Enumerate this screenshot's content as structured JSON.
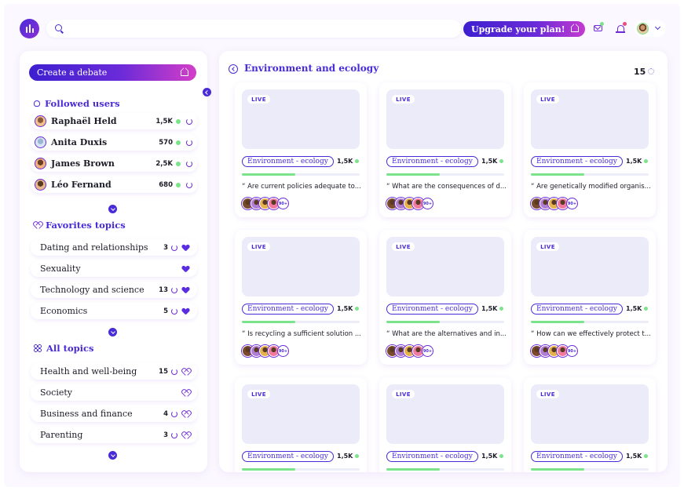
{
  "search": {
    "placeholder": ""
  },
  "header": {
    "upgrade_label": "Upgrade your plan!"
  },
  "sidebar": {
    "create_label": "Create a debate",
    "followed_title": "Followed users",
    "followed_users": [
      {
        "name": "Raphaël Held",
        "count": "1,5K"
      },
      {
        "name": "Anita Duxis",
        "count": "570"
      },
      {
        "name": "James Brown",
        "count": "2,5K"
      },
      {
        "name": "Léo Fernand",
        "count": "680"
      }
    ],
    "favorites_title": "Favorites topics",
    "favorite_topics": [
      {
        "name": "Dating and relationships",
        "count": "3"
      },
      {
        "name": "Sexuality",
        "count": ""
      },
      {
        "name": "Technology and science",
        "count": "13"
      },
      {
        "name": "Economics",
        "count": "5"
      }
    ],
    "all_title": "All topics",
    "all_topics": [
      {
        "name": "Health and well-being",
        "count": "15"
      },
      {
        "name": "Society",
        "count": ""
      },
      {
        "name": "Business and finance",
        "count": "4"
      },
      {
        "name": "Parenting",
        "count": "3"
      }
    ]
  },
  "main": {
    "title": "Environment and ecology",
    "count": "15",
    "cards": [
      {
        "live": "LIVE",
        "tag": "Environment - ecology",
        "views": "1,5K",
        "progress": 0.45,
        "question": "“ Are current policies adequate to... ”",
        "more": "90+"
      },
      {
        "live": "LIVE",
        "tag": "Environment - ecology",
        "views": "1,5K",
        "progress": 0.45,
        "question": "“ What are the consequences of d... ”",
        "more": "90+"
      },
      {
        "live": "LIVE",
        "tag": "Environment - ecology",
        "views": "1,5K",
        "progress": 0.45,
        "question": "“ Are genetically modified organis... ”",
        "more": "90+"
      },
      {
        "live": "LIVE",
        "tag": "Environment - ecology",
        "views": "1,5K",
        "progress": 0.45,
        "question": "“ Is recycling a sufficient solution ... ”",
        "more": "90+"
      },
      {
        "live": "LIVE",
        "tag": "Environment - ecology",
        "views": "1,5K",
        "progress": 0.45,
        "question": "“ What are the alternatives and in... ”",
        "more": "90+"
      },
      {
        "live": "LIVE",
        "tag": "Environment - ecology",
        "views": "1,5K",
        "progress": 0.45,
        "question": "“ How can we effectively protect t... ”",
        "more": "90+"
      },
      {
        "live": "LIVE",
        "tag": "Environment - ecology",
        "views": "1,5K",
        "progress": 0.45,
        "question": "",
        "more": ""
      },
      {
        "live": "LIVE",
        "tag": "Environment - ecology",
        "views": "1,5K",
        "progress": 0.45,
        "question": "",
        "more": ""
      },
      {
        "live": "LIVE",
        "tag": "Environment - ecology",
        "views": "1,5K",
        "progress": 0.45,
        "question": "",
        "more": ""
      }
    ]
  },
  "colors": {
    "accent": "#4a2bd8",
    "online": "#7be38b",
    "notification": "#f04a7a"
  },
  "icons": [
    "logo-icon",
    "search-icon",
    "crown-icon",
    "mail-icon",
    "bell-icon",
    "chevron-down-icon",
    "user-icon",
    "heart-icon",
    "grid-icon",
    "refresh-icon",
    "back-icon",
    "spinner-icon"
  ]
}
